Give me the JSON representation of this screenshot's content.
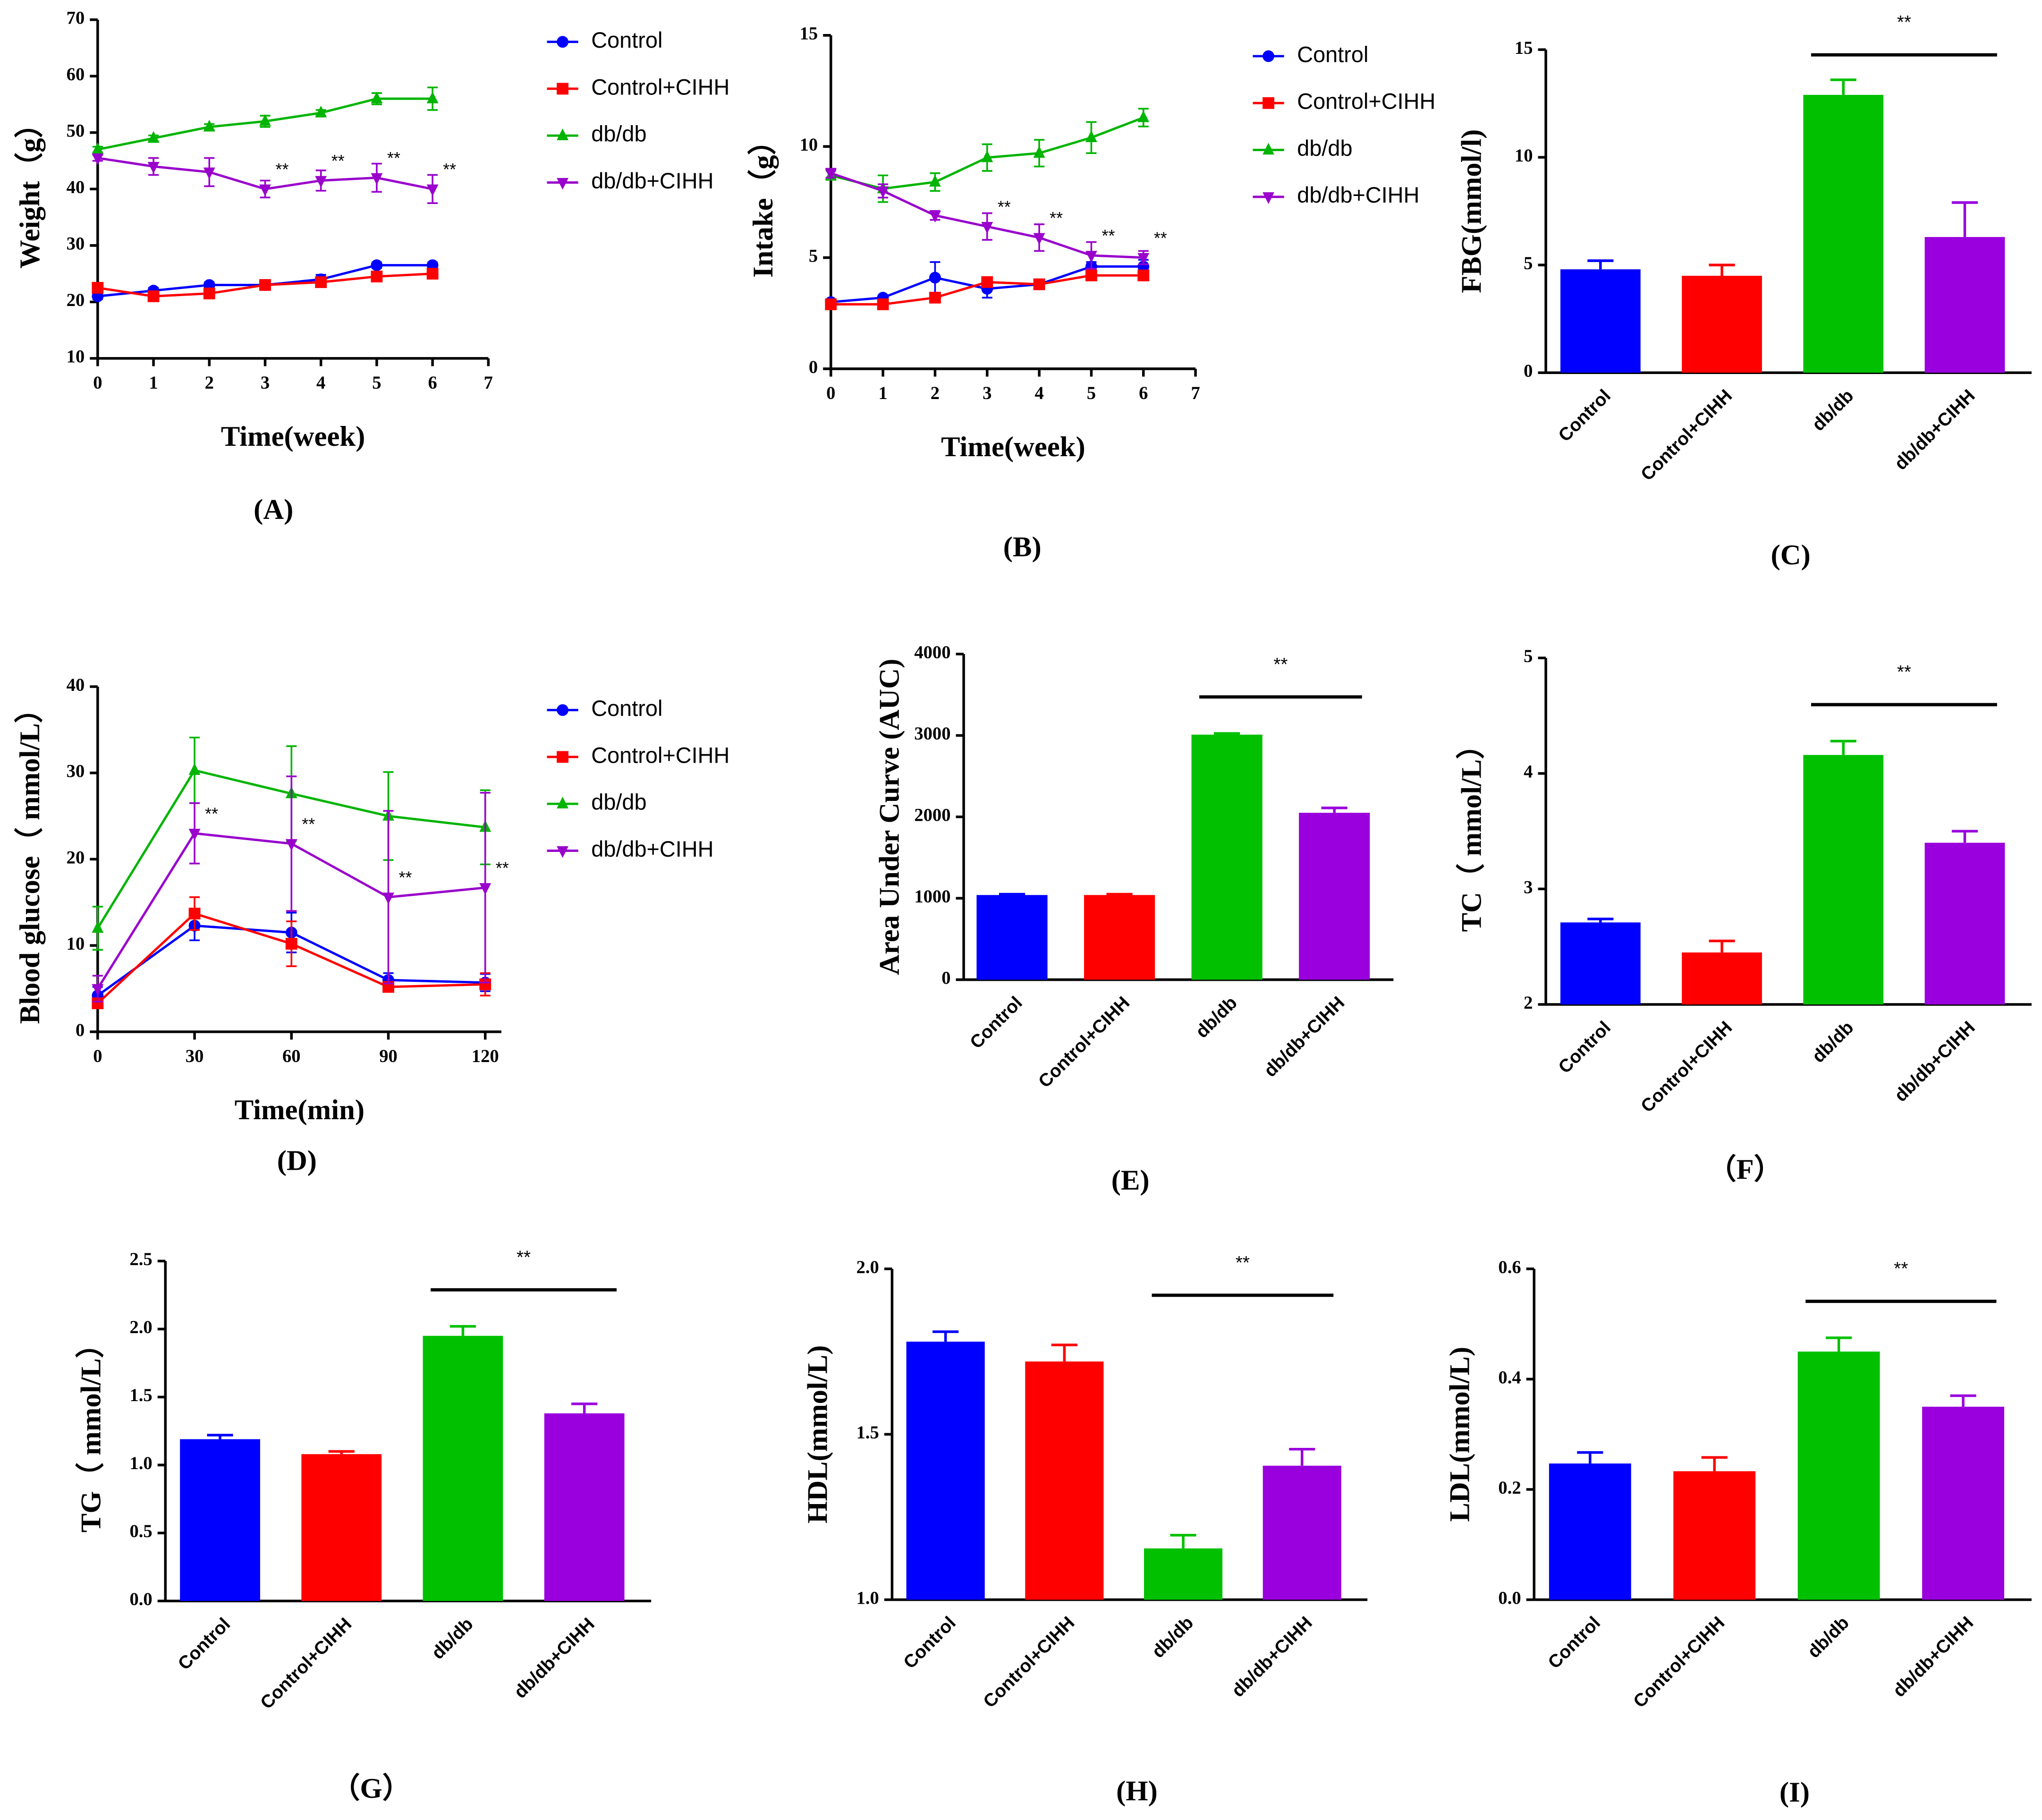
{
  "chart_data": [
    {
      "type": "line",
      "panel_label": "(A)",
      "ylabel": "Weight（g）",
      "xlabel": "Time(week)",
      "x": [
        0,
        1,
        2,
        3,
        4,
        5,
        6
      ],
      "xlim": [
        0,
        7
      ],
      "xticks": [
        0,
        1,
        2,
        3,
        4,
        5,
        6,
        7
      ],
      "ylim": [
        10,
        70
      ],
      "yticks": [
        10,
        20,
        30,
        40,
        50,
        60,
        70
      ],
      "series": [
        {
          "name": "Control",
          "color": "#0000ff",
          "marker": "circle",
          "values": [
            21,
            22,
            23,
            23,
            24,
            26.5,
            26.5
          ],
          "errors": [
            0.5,
            0.5,
            0.5,
            0.5,
            0.8,
            0.5,
            0.5
          ]
        },
        {
          "name": "Control+CIHH",
          "color": "#ff0000",
          "marker": "square",
          "values": [
            22.5,
            21,
            21.5,
            23,
            23.5,
            24.5,
            25
          ],
          "errors": [
            0.5,
            0.5,
            0.5,
            0.5,
            0.5,
            0.5,
            0.5
          ]
        },
        {
          "name": "db/db",
          "color": "#00b400",
          "marker": "triangle",
          "values": [
            47,
            49,
            51,
            52,
            53.5,
            56,
            56
          ],
          "errors": [
            0.5,
            0.5,
            0.5,
            1,
            0.5,
            1,
            2
          ]
        },
        {
          "name": "db/db+CIHH",
          "color": "#9900cc",
          "marker": "triangle-down",
          "values": [
            45.5,
            44,
            43,
            40,
            41.5,
            42,
            40
          ],
          "errors": [
            0.5,
            1.5,
            2.5,
            1.5,
            1.8,
            2.5,
            2.5
          ],
          "significance": [
            null,
            null,
            null,
            "**",
            "**",
            "**",
            "**"
          ]
        }
      ]
    },
    {
      "type": "line",
      "panel_label": "(B)",
      "ylabel": "Intake（g）",
      "xlabel": "Time(week)",
      "x": [
        0,
        1,
        2,
        3,
        4,
        5,
        6
      ],
      "xlim": [
        0,
        7
      ],
      "xticks": [
        0,
        1,
        2,
        3,
        4,
        5,
        6,
        7
      ],
      "ylim": [
        0,
        15
      ],
      "yticks": [
        0,
        5,
        10,
        15
      ],
      "series": [
        {
          "name": "Control",
          "color": "#0000ff",
          "marker": "circle",
          "values": [
            3,
            3.2,
            4.1,
            3.6,
            3.8,
            4.6,
            4.6
          ],
          "errors": [
            0.1,
            0.1,
            0.7,
            0.4,
            0.2,
            0.2,
            0.3
          ]
        },
        {
          "name": "Control+CIHH",
          "color": "#ff0000",
          "marker": "square",
          "values": [
            2.9,
            2.9,
            3.2,
            3.9,
            3.8,
            4.2,
            4.2
          ],
          "errors": [
            0.1,
            0.1,
            0.1,
            0.1,
            0.1,
            0.1,
            0.1
          ]
        },
        {
          "name": "db/db",
          "color": "#00b400",
          "marker": "triangle",
          "values": [
            8.7,
            8.1,
            8.4,
            9.5,
            9.7,
            10.4,
            11.3
          ],
          "errors": [
            0.2,
            0.6,
            0.4,
            0.6,
            0.6,
            0.7,
            0.4
          ]
        },
        {
          "name": "db/db+CIHH",
          "color": "#9900cc",
          "marker": "triangle-down",
          "values": [
            8.8,
            8,
            6.9,
            6.4,
            5.9,
            5.1,
            5
          ],
          "errors": [
            0.2,
            0.3,
            0.2,
            0.6,
            0.6,
            0.6,
            0.3
          ],
          "significance": [
            null,
            null,
            null,
            "**",
            "**",
            "**",
            "**"
          ]
        }
      ]
    },
    {
      "type": "bar",
      "panel_label": "(C)",
      "ylabel": "FBG(mmol/l)",
      "categories": [
        "Control",
        "Control+CIHH",
        "db/db",
        "db/db+CIHH"
      ],
      "colors": [
        "#0000ff",
        "#ff0000",
        "#00c000",
        "#9900dd"
      ],
      "values": [
        4.8,
        4.5,
        12.9,
        6.3
      ],
      "errors": [
        0.4,
        0.5,
        0.7,
        1.6
      ],
      "ylim": [
        0,
        15
      ],
      "yticks": [
        0,
        5,
        10,
        15
      ],
      "significance": {
        "label": "**",
        "between": [
          2,
          3
        ]
      }
    },
    {
      "type": "line",
      "panel_label": "(D)",
      "ylabel": "Blood glucose（ mmol/L）",
      "xlabel": "Time(min)",
      "x": [
        0,
        30,
        60,
        90,
        120
      ],
      "xlim": [
        0,
        125
      ],
      "xticks": [
        0,
        30,
        60,
        90,
        120
      ],
      "ylim": [
        0,
        40
      ],
      "yticks": [
        0,
        10,
        20,
        30,
        40
      ],
      "series": [
        {
          "name": "Control",
          "color": "#0000ff",
          "marker": "circle",
          "values": [
            4.2,
            12.3,
            11.5,
            6,
            5.7
          ],
          "errors": [
            1,
            1.7,
            2.3,
            0.8,
            1
          ]
        },
        {
          "name": "Control+CIHH",
          "color": "#ff0000",
          "marker": "square",
          "values": [
            3.3,
            13.7,
            10.2,
            5.2,
            5.5
          ],
          "errors": [
            0.5,
            1.9,
            2.6,
            0.5,
            1.3
          ]
        },
        {
          "name": "db/db",
          "color": "#00b400",
          "marker": "triangle",
          "values": [
            12,
            30.3,
            27.6,
            25,
            23.7
          ],
          "errors": [
            2.5,
            3.8,
            5.5,
            5.1,
            4.3
          ]
        },
        {
          "name": "db/db+CIHH",
          "color": "#9900cc",
          "marker": "triangle-down",
          "values": [
            5,
            23,
            21.8,
            15.6,
            16.7
          ],
          "errors": [
            1.5,
            3.5,
            7.8,
            10,
            11
          ],
          "significance": [
            null,
            "**",
            "**",
            "**",
            "**"
          ]
        }
      ]
    },
    {
      "type": "bar",
      "panel_label": "(E)",
      "ylabel": "Area Under Curve (AUC)",
      "categories": [
        "Control",
        "Control+CIHH",
        "db/db",
        "db/db+CIHH"
      ],
      "colors": [
        "#0000ff",
        "#ff0000",
        "#00c000",
        "#9900dd"
      ],
      "values": [
        1040,
        1040,
        3010,
        2050
      ],
      "errors": [
        10,
        10,
        15,
        60
      ],
      "ylim": [
        0,
        4000
      ],
      "yticks": [
        0,
        1000,
        2000,
        3000,
        4000
      ],
      "significance": {
        "label": "**",
        "between": [
          2,
          3
        ]
      }
    },
    {
      "type": "bar",
      "panel_label": "（F）",
      "ylabel": "TC（ mmol/L）",
      "categories": [
        "Control",
        "Control+CIHH",
        "db/db",
        "db/db+CIHH"
      ],
      "colors": [
        "#0000ff",
        "#ff0000",
        "#00c000",
        "#9900dd"
      ],
      "values": [
        2.71,
        2.45,
        4.16,
        3.4
      ],
      "errors": [
        0.03,
        0.1,
        0.12,
        0.1
      ],
      "ylim": [
        2,
        5
      ],
      "yticks": [
        2,
        3,
        4,
        5
      ],
      "significance": {
        "label": "**",
        "between": [
          2,
          3
        ]
      }
    },
    {
      "type": "bar",
      "panel_label": "（G）",
      "ylabel": "TG（ mmol/L）",
      "categories": [
        "Control",
        "Control+CIHH",
        "db/db",
        "db/db+CIHH"
      ],
      "colors": [
        "#0000ff",
        "#ff0000",
        "#00c000",
        "#9900dd"
      ],
      "values": [
        1.19,
        1.08,
        1.95,
        1.38
      ],
      "errors": [
        0.03,
        0.02,
        0.07,
        0.07
      ],
      "ylim": [
        0,
        2.5
      ],
      "yticks": [
        {
          "value": 0,
          "label": "0.0"
        },
        0.5,
        {
          "value": 1,
          "label": "1.0"
        },
        1.5,
        {
          "value": 2,
          "label": "2.0"
        },
        2.5
      ],
      "significance": {
        "label": "**",
        "between": [
          2,
          3
        ]
      }
    },
    {
      "type": "bar",
      "panel_label": "(H)",
      "ylabel": "HDL(mmol/L)",
      "categories": [
        "Control",
        "Control+CIHH",
        "db/db",
        "db/db+CIHH"
      ],
      "colors": [
        "#0000ff",
        "#ff0000",
        "#00c000",
        "#9900dd"
      ],
      "values": [
        1.78,
        1.72,
        1.155,
        1.405
      ],
      "errors": [
        0.03,
        0.05,
        0.04,
        0.05
      ],
      "ylim": [
        1,
        2
      ],
      "yticks": [
        {
          "value": 1,
          "label": "1.0"
        },
        1.5,
        {
          "value": 2,
          "label": "2.0"
        }
      ],
      "significance": {
        "label": "**",
        "between": [
          2,
          3
        ]
      }
    },
    {
      "type": "bar",
      "panel_label": "(I)",
      "ylabel": "LDL(mmol/L)",
      "categories": [
        "Control",
        "Control+CIHH",
        "db/db",
        "db/db+CIHH"
      ],
      "colors": [
        "#0000ff",
        "#ff0000",
        "#00c000",
        "#9900dd"
      ],
      "values": [
        0.247,
        0.233,
        0.45,
        0.35
      ],
      "errors": [
        0.02,
        0.025,
        0.025,
        0.02
      ],
      "ylim": [
        0,
        0.6
      ],
      "yticks": [
        {
          "value": 0,
          "label": "0.0"
        },
        0.2,
        0.4,
        0.6
      ],
      "significance": {
        "label": "**",
        "between": [
          2,
          3
        ]
      }
    }
  ]
}
